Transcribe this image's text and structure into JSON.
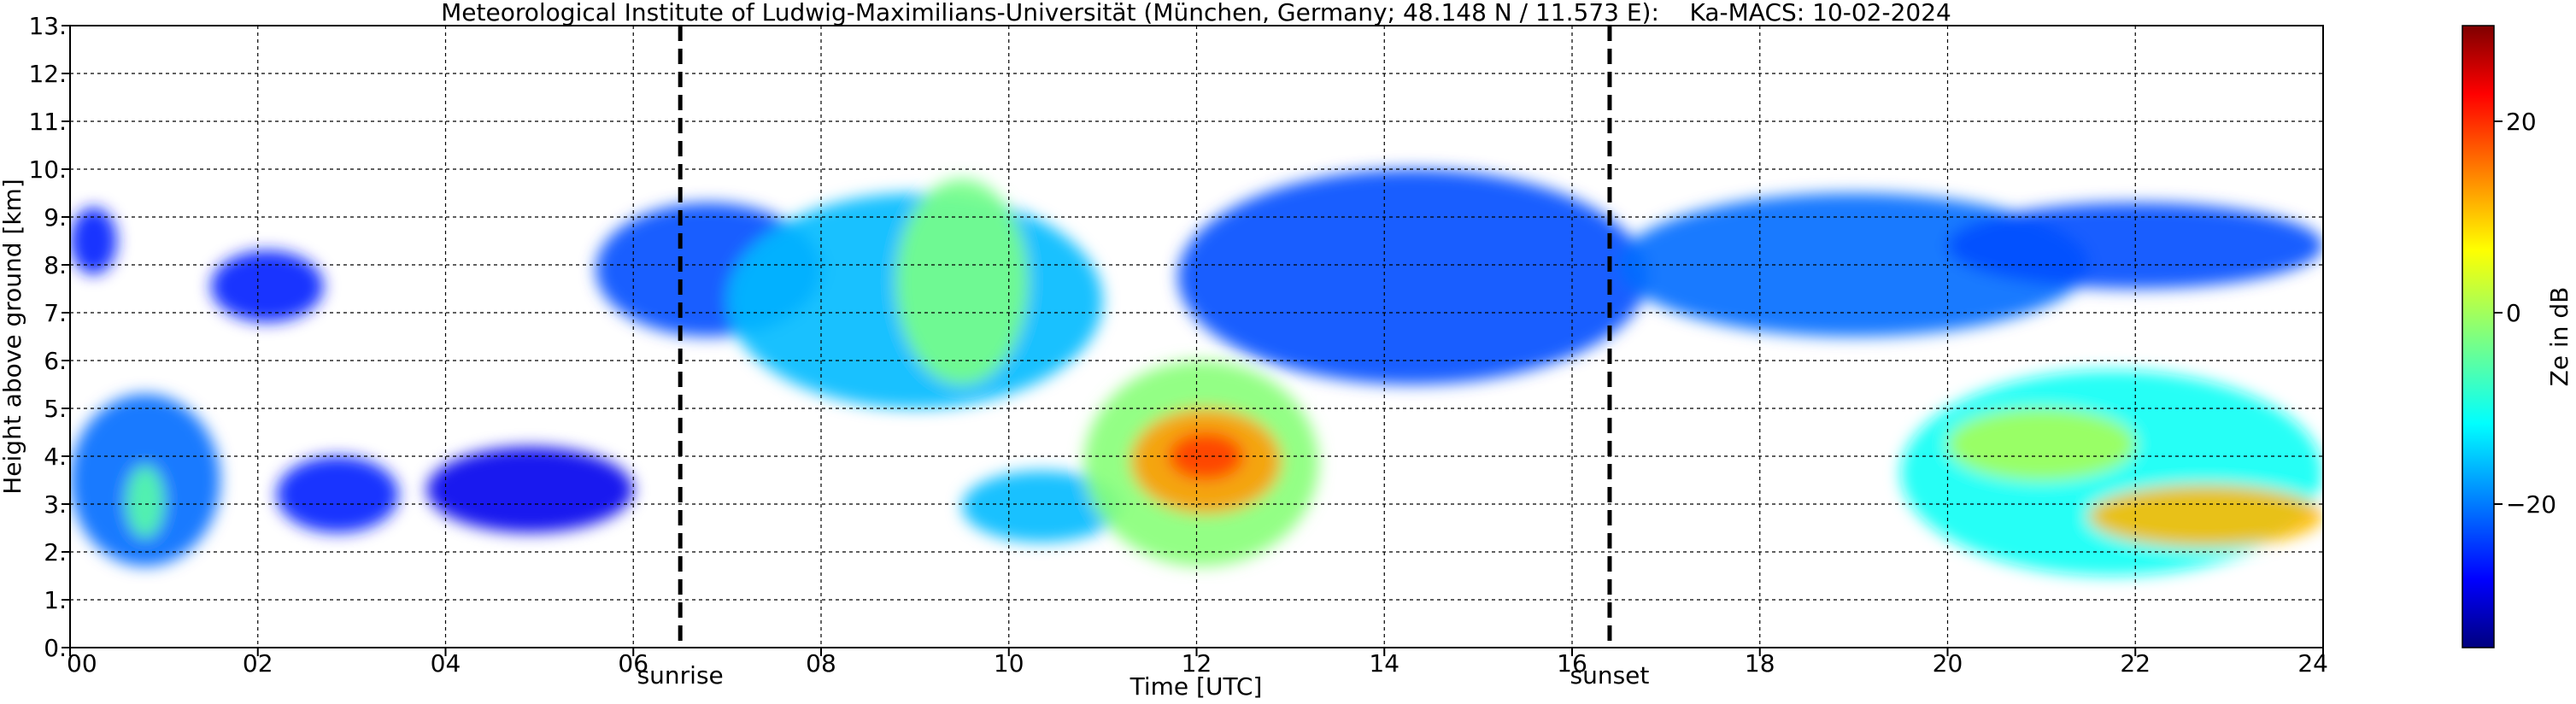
{
  "chart_data": {
    "type": "heatmap",
    "title": "Meteorological Institute of Ludwig-Maximilians-Universität (München, Germany; 48.148 N / 11.573 E):    Ka-MACS: 10-02-2024",
    "xlabel": "Time [UTC]",
    "ylabel": "Height above ground [km]",
    "xlim": [
      0,
      24
    ],
    "ylim": [
      0,
      13
    ],
    "x_ticks": [
      0,
      2,
      4,
      6,
      8,
      10,
      12,
      14,
      16,
      18,
      20,
      22,
      24
    ],
    "x_tick_labels": [
      "00",
      "02",
      "04",
      "06",
      "08",
      "10",
      "12",
      "14",
      "16",
      "18",
      "20",
      "22",
      "24"
    ],
    "y_ticks": [
      0,
      1,
      2,
      3,
      4,
      5,
      6,
      7,
      8,
      9,
      10,
      11,
      12,
      13
    ],
    "y_tick_labels": [
      "0.",
      "1.",
      "2.",
      "3.",
      "4.",
      "5.",
      "6.",
      "7.",
      "8.",
      "9.",
      "10.",
      "11.",
      "12.",
      "13."
    ],
    "grid": true,
    "colorbar": {
      "label": "Ze in dB",
      "colormap": "jet",
      "range": [
        -35,
        30
      ],
      "ticks": [
        -20,
        0,
        20
      ],
      "tick_labels": [
        "−20",
        "0",
        "20"
      ]
    },
    "annotations": [
      {
        "label": "sunrise",
        "x": 6.5
      },
      {
        "label": "sunset",
        "x": 16.4
      }
    ],
    "echo_regions": [
      {
        "x0": 0.0,
        "x1": 0.5,
        "y0": 7.8,
        "y1": 9.2,
        "value": -25
      },
      {
        "x0": 0.0,
        "x1": 1.6,
        "y0": 1.7,
        "y1": 5.3,
        "value": -20
      },
      {
        "x0": 0.6,
        "x1": 1.0,
        "y0": 2.3,
        "y1": 3.8,
        "value": -5
      },
      {
        "x0": 1.5,
        "x1": 2.7,
        "y0": 6.8,
        "y1": 8.3,
        "value": -25
      },
      {
        "x0": 2.2,
        "x1": 3.5,
        "y0": 2.4,
        "y1": 4.0,
        "value": -25
      },
      {
        "x0": 3.8,
        "x1": 6.0,
        "y0": 2.4,
        "y1": 4.2,
        "value": -28
      },
      {
        "x0": 5.6,
        "x1": 8.0,
        "y0": 6.5,
        "y1": 9.3,
        "value": -22
      },
      {
        "x0": 7.0,
        "x1": 11.0,
        "y0": 5.0,
        "y1": 9.5,
        "value": -15
      },
      {
        "x0": 8.8,
        "x1": 10.2,
        "y0": 5.5,
        "y1": 9.8,
        "value": -3
      },
      {
        "x0": 9.5,
        "x1": 11.2,
        "y0": 2.2,
        "y1": 3.7,
        "value": -15
      },
      {
        "x0": 10.8,
        "x1": 13.3,
        "y0": 1.7,
        "y1": 6.0,
        "value": -2
      },
      {
        "x0": 11.3,
        "x1": 12.9,
        "y0": 2.8,
        "y1": 5.0,
        "value": 12
      },
      {
        "x0": 11.7,
        "x1": 12.5,
        "y0": 3.5,
        "y1": 4.5,
        "value": 18
      },
      {
        "x0": 11.8,
        "x1": 16.8,
        "y0": 5.5,
        "y1": 10.0,
        "value": -22
      },
      {
        "x0": 16.5,
        "x1": 21.5,
        "y0": 6.5,
        "y1": 9.5,
        "value": -20
      },
      {
        "x0": 19.5,
        "x1": 24.0,
        "y0": 1.5,
        "y1": 5.8,
        "value": -10
      },
      {
        "x0": 20.0,
        "x1": 22.0,
        "y0": 3.5,
        "y1": 5.0,
        "value": 0
      },
      {
        "x0": 21.5,
        "x1": 24.0,
        "y0": 2.1,
        "y1": 3.4,
        "value": 10
      },
      {
        "x0": 20.0,
        "x1": 24.0,
        "y0": 7.5,
        "y1": 9.3,
        "value": -22
      }
    ]
  }
}
